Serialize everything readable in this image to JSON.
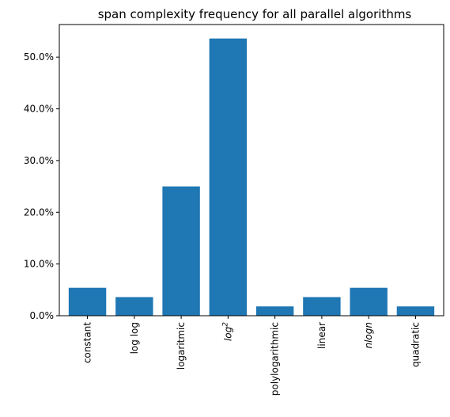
{
  "chart_data": {
    "type": "bar",
    "title": "span complexity frequency for all parallel algorithms",
    "xlabel": "",
    "ylabel": "",
    "categories": [
      "constant",
      "log log",
      "logaritmic",
      "log2",
      "polylogarithmic",
      "linear",
      "nlogn",
      "quadratic"
    ],
    "category_display": [
      {
        "text": "constant",
        "italic": false,
        "sup": ""
      },
      {
        "text": "log log",
        "italic": false,
        "sup": ""
      },
      {
        "text": "logaritmic",
        "italic": false,
        "sup": ""
      },
      {
        "text": "log",
        "italic": true,
        "sup": "2"
      },
      {
        "text": "polylogarithmic",
        "italic": false,
        "sup": ""
      },
      {
        "text": "linear",
        "italic": false,
        "sup": ""
      },
      {
        "text": "nlogn",
        "italic": true,
        "sup": ""
      },
      {
        "text": "quadratic",
        "italic": false,
        "sup": ""
      }
    ],
    "values": [
      5.4,
      3.6,
      25.0,
      53.6,
      1.8,
      3.6,
      5.4,
      1.8
    ],
    "value_unit": "%",
    "ylim": [
      0,
      56.3
    ],
    "yticks": [
      0,
      10,
      20,
      30,
      40,
      50
    ],
    "ytick_labels": [
      "0.0%",
      "10.0%",
      "20.0%",
      "30.0%",
      "40.0%",
      "50.0%"
    ],
    "bar_color": "#1f77b4",
    "grid": false,
    "legend": "none"
  }
}
